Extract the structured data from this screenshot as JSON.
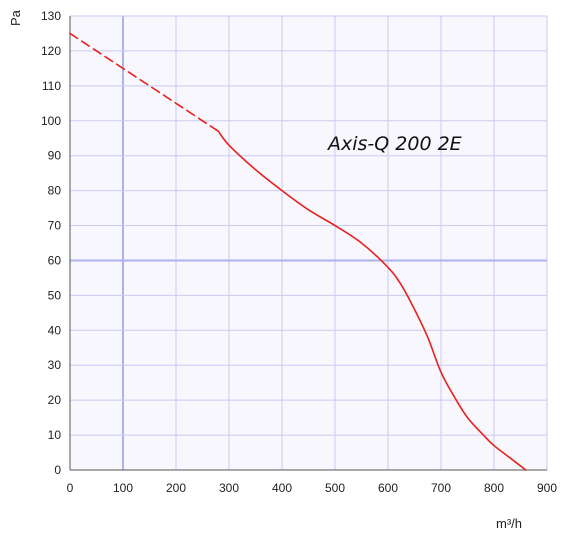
{
  "chart_data": {
    "type": "line",
    "title": "",
    "xlabel": "m³/h",
    "ylabel": "Pa",
    "xlim": [
      0,
      900
    ],
    "ylim": [
      0,
      130
    ],
    "xticks": [
      0,
      100,
      200,
      300,
      400,
      500,
      600,
      700,
      800,
      900
    ],
    "yticks": [
      0,
      10,
      20,
      30,
      40,
      50,
      60,
      70,
      80,
      90,
      100,
      110,
      120,
      130
    ],
    "grid": true,
    "annotation": "Axis-Q 200 2E",
    "series": [
      {
        "color": "#e8211c",
        "segments": [
          {
            "style": "dashed",
            "x": [
              0,
              50,
              100,
              150,
              200,
              250,
              280
            ],
            "y": [
              125,
              120,
              115,
              110,
              105,
              100,
              97
            ]
          },
          {
            "style": "solid",
            "x": [
              280,
              300,
              350,
              400,
              450,
              500,
              550,
              600,
              625,
              650,
              675,
              700,
              725,
              750,
              780,
              800,
              830,
              860
            ],
            "y": [
              97,
              93,
              86,
              80,
              74.5,
              70,
              65,
              58,
              53,
              46,
              38,
              28,
              21,
              15,
              10,
              7,
              3.5,
              0
            ]
          }
        ]
      }
    ]
  },
  "colors": {
    "grid": "#c9cbf2",
    "grid_emphasis": "#aeb2ec",
    "plot_shade": "#f7f7fd",
    "axis": "#555555"
  }
}
